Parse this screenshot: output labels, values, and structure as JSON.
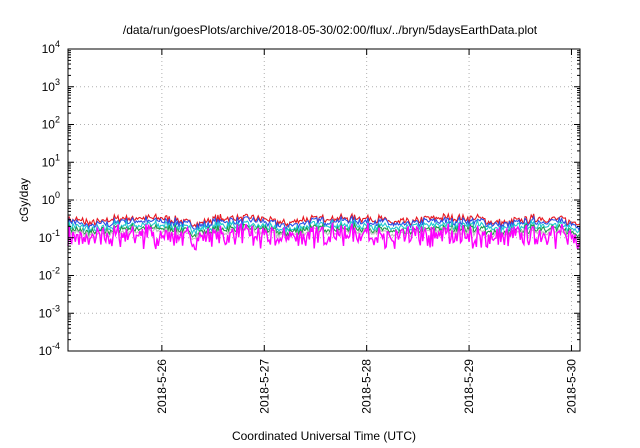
{
  "chart_data": {
    "type": "line",
    "title": "/data/run/goesPlots/archive/2018-05-30/02:00/flux/../bryn/5daysEarthData.plot",
    "xlabel": "Coordinated Universal Time (UTC)",
    "ylabel": "cGy/day",
    "yscale": "log",
    "ylim": [
      0.0001,
      10000
    ],
    "xlim": [
      "2018-05-25T02:00",
      "2018-05-30T02:00"
    ],
    "yticks": [
      {
        "value": 0.0001,
        "base": "10",
        "exp": "-4"
      },
      {
        "value": 0.001,
        "base": "10",
        "exp": "-3"
      },
      {
        "value": 0.01,
        "base": "10",
        "exp": "-2"
      },
      {
        "value": 0.1,
        "base": "10",
        "exp": "-1"
      },
      {
        "value": 1,
        "base": "10",
        "exp": "0"
      },
      {
        "value": 10,
        "base": "10",
        "exp": "1"
      },
      {
        "value": 100,
        "base": "10",
        "exp": "2"
      },
      {
        "value": 1000,
        "base": "10",
        "exp": "3"
      },
      {
        "value": 10000,
        "base": "10",
        "exp": "4"
      }
    ],
    "xticks": [
      {
        "value": "2018-05-26T00:00",
        "label": "2018-5-26"
      },
      {
        "value": "2018-05-27T00:00",
        "label": "2018-5-27"
      },
      {
        "value": "2018-05-28T00:00",
        "label": "2018-5-28"
      },
      {
        "value": "2018-05-29T00:00",
        "label": "2018-5-29"
      },
      {
        "value": "2018-05-30T00:00",
        "label": "2018-5-30"
      }
    ],
    "grid": true,
    "series": [
      {
        "color": "#e8161e",
        "base": 0.33,
        "minima": 0.2
      },
      {
        "color": "#2851e8",
        "base": 0.28,
        "minima": 0.18
      },
      {
        "color": "#1fc9d0",
        "base": 0.22,
        "minima": 0.15
      },
      {
        "color": "#1d9a4a",
        "base": 0.18,
        "minima": 0.13
      },
      {
        "color": "#c0c0c0",
        "base": 0.15,
        "minima": 0.11
      },
      {
        "color": "#ff00ff",
        "base": 0.13,
        "minima": 0.05
      }
    ],
    "dips": [
      "2018-05-25T08:00",
      "2018-05-26T08:00",
      "2018-05-27T05:00",
      "2018-05-28T08:00",
      "2018-05-29T08:00",
      "2018-05-30T02:00"
    ]
  }
}
